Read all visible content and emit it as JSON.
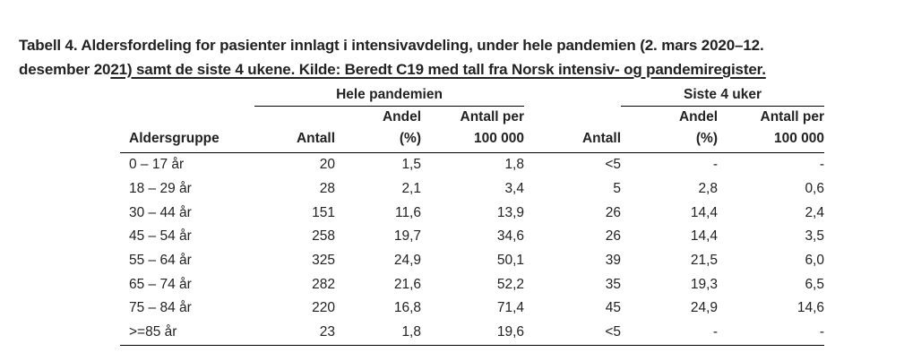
{
  "caption": {
    "line1": "Tabell 4. Aldersfordeling for pasienter innlagt i intensivavdeling, under hele pandemien (2. mars 2020–12.",
    "line2_plain": "desember 20",
    "line2_underlined": "21) samt de siste 4 ukene. Kilde: Beredt C19 med tall fra Norsk intensiv- og pandemiregister."
  },
  "table": {
    "group_headers": [
      "Hele pandemien",
      "Siste 4 uker"
    ],
    "col_age": "Aldersgruppe",
    "col_antall": "Antall",
    "col_andel_1": "Andel",
    "col_andel_2": "(%)",
    "col_per_1": "Antall per",
    "col_per_2": "100 000",
    "rows": [
      [
        "0 – 17 år",
        "20",
        "1,5",
        "1,8",
        "<5",
        "-",
        "-"
      ],
      [
        "18 – 29 år",
        "28",
        "2,1",
        "3,4",
        "5",
        "2,8",
        "0,6"
      ],
      [
        "30 – 44 år",
        "151",
        "11,6",
        "13,9",
        "26",
        "14,4",
        "2,4"
      ],
      [
        "45 – 54 år",
        "258",
        "19,7",
        "34,6",
        "26",
        "14,4",
        "3,5"
      ],
      [
        "55 – 64 år",
        "325",
        "24,9",
        "50,1",
        "39",
        "21,5",
        "6,0"
      ],
      [
        "65 – 74 år",
        "282",
        "21,6",
        "52,2",
        "35",
        "19,3",
        "6,5"
      ],
      [
        "75 – 84 år",
        "220",
        "16,8",
        "71,4",
        "45",
        "24,9",
        "14,6"
      ],
      [
        ">=85 år",
        "23",
        "1,8",
        "19,6",
        "<5",
        "-",
        "-"
      ]
    ]
  }
}
